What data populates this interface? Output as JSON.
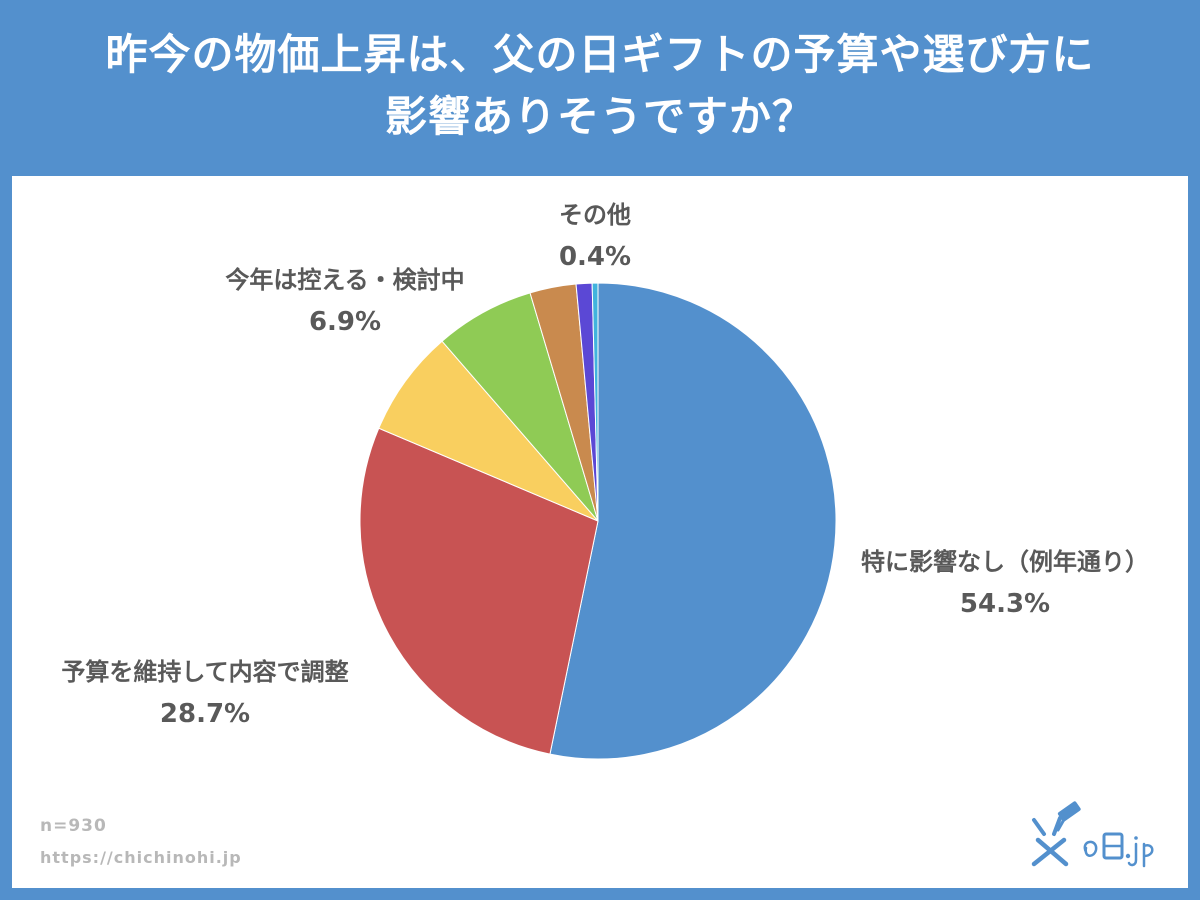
{
  "title": {
    "line1": "昨今の物価上昇は、父の日ギフトの予算や選び方に",
    "line2": "影響ありそうですか？"
  },
  "footer": {
    "sample_size": "n=930",
    "url": "https://chichinohi.jp"
  },
  "logo": {
    "text": "父の日.jp",
    "icon": "hammer-logo-icon"
  },
  "colors": {
    "header_bg": "#5390cd",
    "label_text": "#595959"
  },
  "chart_data": {
    "type": "pie",
    "title": "昨今の物価上昇は、父の日ギフトの予算や選び方に影響ありそうですか？",
    "start_angle": "12 o'clock, clockwise",
    "slices": [
      {
        "label": "特に影響なし（例年通り）",
        "value": 54.3,
        "display": "54.3%",
        "color": "#5390cd",
        "labeled": true
      },
      {
        "label": "予算を維持して内容で調整",
        "value": 28.7,
        "display": "28.7%",
        "color": "#c85353",
        "labeled": true
      },
      {
        "label": "",
        "value": 7.4,
        "display": "",
        "color": "#f9cf5f",
        "labeled": false
      },
      {
        "label": "今年は控える・検討中",
        "value": 6.9,
        "display": "6.9%",
        "color": "#8fcb55",
        "labeled": true
      },
      {
        "label": "",
        "value": 3.2,
        "display": "",
        "color": "#c98a4e",
        "labeled": false
      },
      {
        "label": "",
        "value": 1.1,
        "display": "",
        "color": "#5b48d5",
        "labeled": false
      },
      {
        "label": "その他",
        "value": 0.4,
        "display": "0.4%",
        "color": "#41b3dd",
        "labeled": true
      }
    ]
  }
}
